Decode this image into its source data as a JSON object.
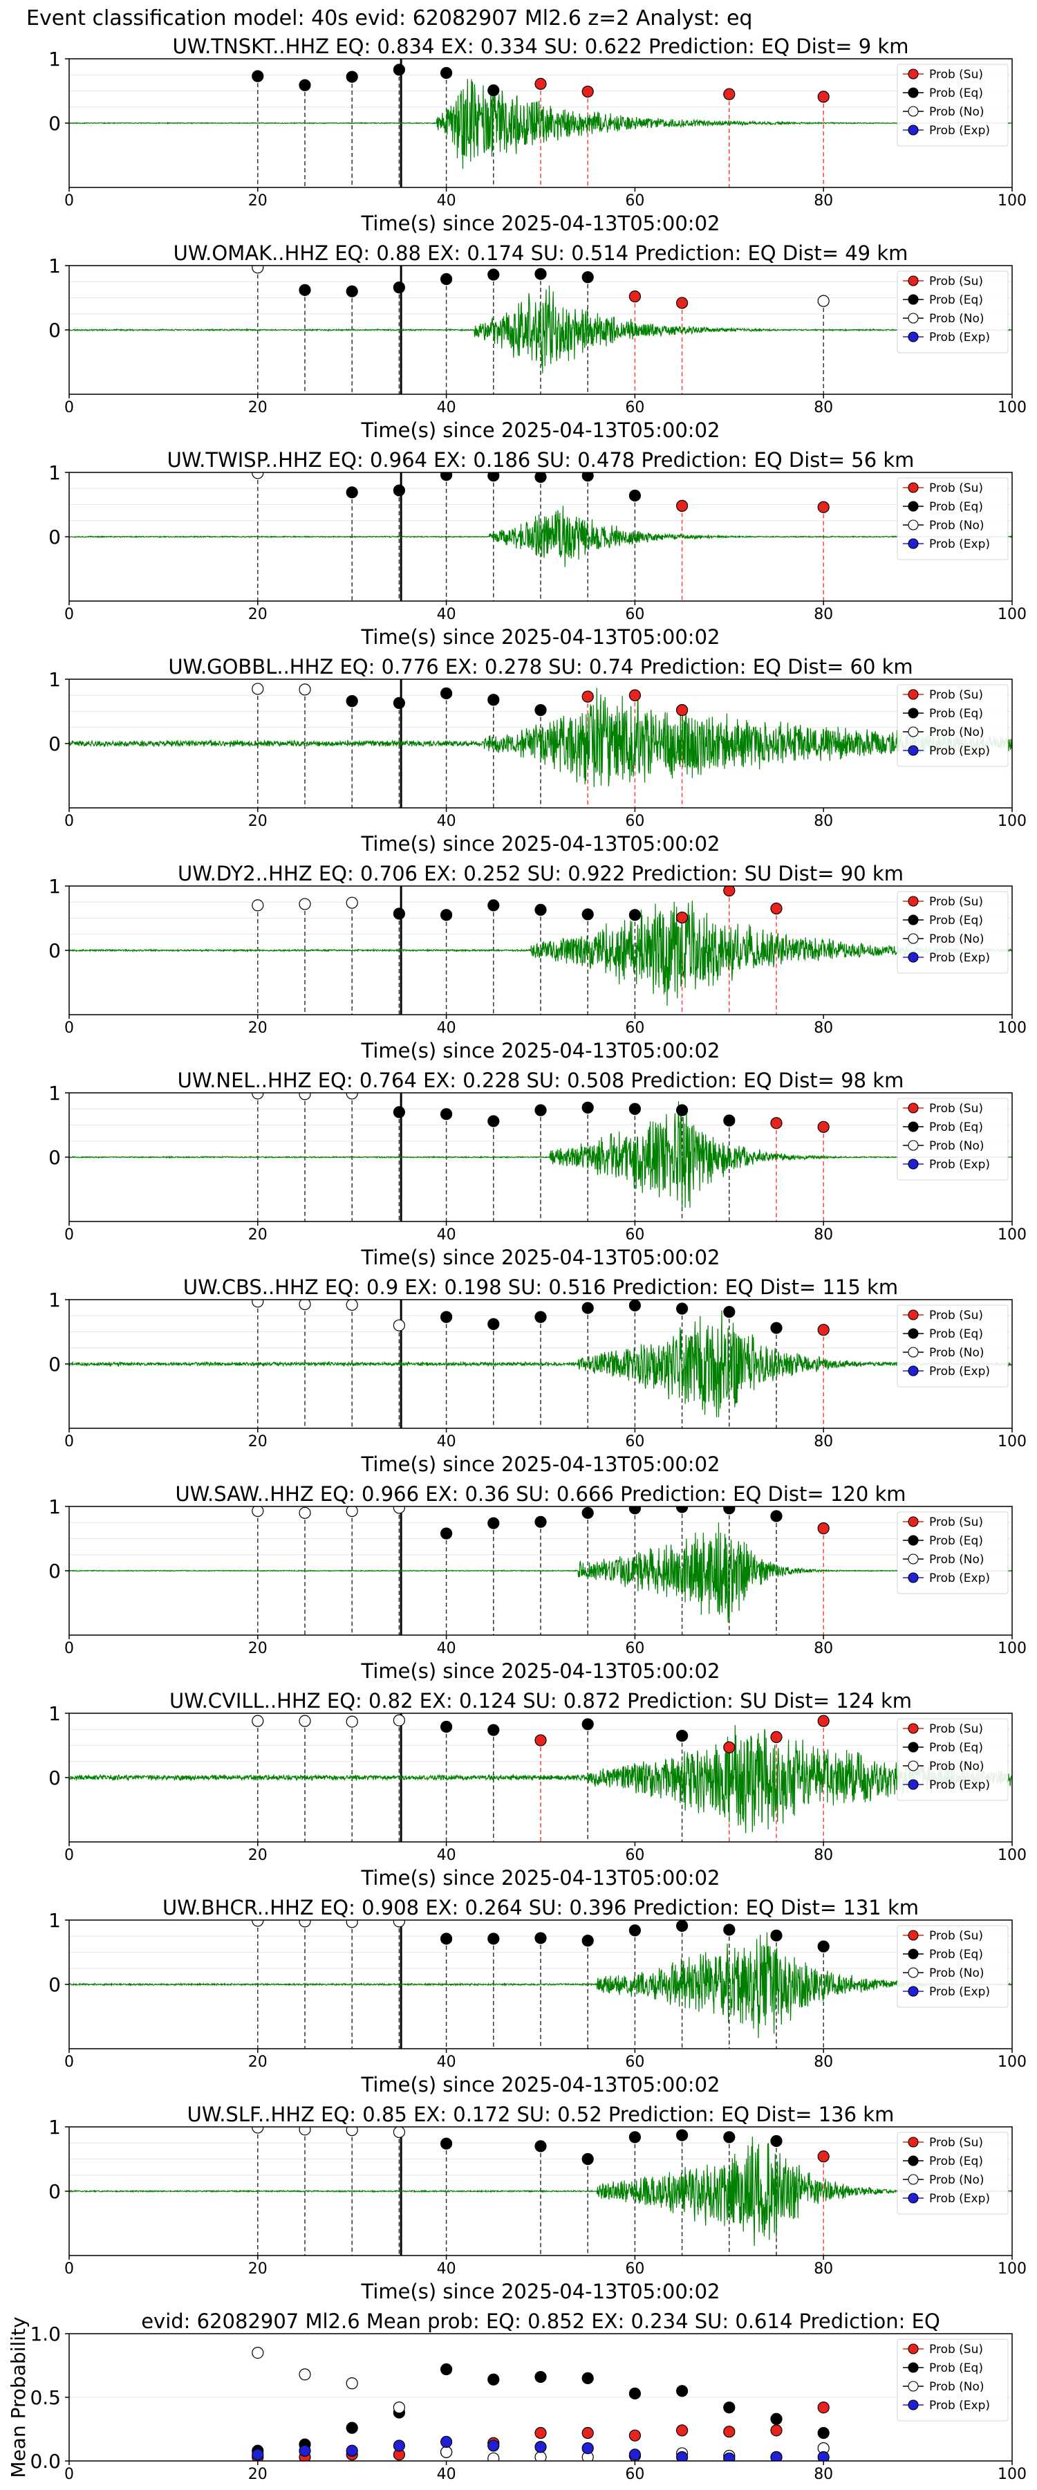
{
  "figure_title": "Event classification model: 40s evid: 62082907 Ml2.6 z=2 Analyst: eq",
  "xlabel": "Time(s) since 2025-04-13T05:00:02",
  "x_ticks": [
    0,
    20,
    40,
    60,
    80,
    100
  ],
  "legend": [
    "Prob (Su)",
    "Prob (Eq)",
    "Prob (No)",
    "Prob (Exp)"
  ],
  "colors": {
    "su": "#e8221c",
    "eq": "#000000",
    "no": "#ffffff",
    "exp": "#1f1fd6",
    "trace": "#008000"
  },
  "chart_data": [
    {
      "type": "scatter",
      "title": "UW.TNSKT..HHZ   EQ: 0.834  EX: 0.334  SU: 0.622   Prediction: EQ    Dist= 9 km",
      "xlim": [
        0,
        100
      ],
      "ylim": [
        -1,
        1
      ],
      "y_ticks": [
        1,
        0
      ],
      "arrival": 35.2,
      "trace": {
        "onset": 39,
        "peak": 42,
        "decay": 9,
        "amp": 0.9,
        "bg": 0.008,
        "seed": 11
      },
      "series": [
        {
          "name": "Prob (Eq)",
          "x": [
            20,
            25,
            30,
            35,
            40,
            45
          ],
          "y": [
            0.73,
            0.59,
            0.72,
            0.83,
            0.78,
            0.51
          ]
        },
        {
          "name": "Prob (Su)",
          "x": [
            50,
            55,
            70,
            80
          ],
          "y": [
            0.61,
            0.49,
            0.45,
            0.41
          ]
        }
      ]
    },
    {
      "type": "scatter",
      "title": "UW.OMAK..HHZ   EQ: 0.88  EX: 0.174  SU: 0.514   Prediction: EQ    Dist= 49 km",
      "xlim": [
        0,
        100
      ],
      "ylim": [
        -1,
        1
      ],
      "y_ticks": [
        1,
        0
      ],
      "arrival": 35.2,
      "trace": {
        "onset": 43,
        "peak": 50,
        "decay": 6,
        "amp": 0.9,
        "bg": 0.012,
        "seed": 23
      },
      "series": [
        {
          "name": "Prob (No)",
          "x": [
            20,
            80
          ],
          "y": [
            0.97,
            0.45
          ]
        },
        {
          "name": "Prob (Eq)",
          "x": [
            25,
            30,
            35,
            40,
            45,
            50,
            55
          ],
          "y": [
            0.62,
            0.6,
            0.66,
            0.79,
            0.86,
            0.87,
            0.82
          ]
        },
        {
          "name": "Prob (Su)",
          "x": [
            60,
            65
          ],
          "y": [
            0.52,
            0.42
          ]
        }
      ]
    },
    {
      "type": "scatter",
      "title": "UW.TWISP..HHZ   EQ: 0.964  EX: 0.186  SU: 0.478   Prediction: EQ    Dist= 56 km",
      "xlim": [
        0,
        100
      ],
      "ylim": [
        -1,
        1
      ],
      "y_ticks": [
        1,
        0
      ],
      "arrival": 35.2,
      "trace": {
        "onset": 44.5,
        "peak": 52,
        "decay": 5,
        "amp": 0.6,
        "bg": 0.01,
        "seed": 37
      },
      "series": [
        {
          "name": "Prob (No)",
          "x": [
            20
          ],
          "y": [
            0.99
          ]
        },
        {
          "name": "Prob (Eq)",
          "x": [
            30,
            35,
            40,
            45,
            50,
            55,
            60
          ],
          "y": [
            0.69,
            0.72,
            0.96,
            0.95,
            0.93,
            0.95,
            0.64
          ]
        },
        {
          "name": "Prob (Su)",
          "x": [
            65,
            80
          ],
          "y": [
            0.48,
            0.46
          ]
        }
      ]
    },
    {
      "type": "scatter",
      "title": "UW.GOBBL..HHZ   EQ: 0.776  EX: 0.278  SU: 0.74   Prediction: EQ    Dist= 60 km",
      "xlim": [
        0,
        100
      ],
      "ylim": [
        -1,
        1
      ],
      "y_ticks": [
        1,
        0
      ],
      "arrival": 35.2,
      "trace": {
        "onset": 44,
        "peak": 56,
        "decay": 22,
        "amp": 0.9,
        "bg": 0.05,
        "seed": 41
      },
      "series": [
        {
          "name": "Prob (No)",
          "x": [
            20,
            25
          ],
          "y": [
            0.85,
            0.84
          ]
        },
        {
          "name": "Prob (Eq)",
          "x": [
            30,
            35,
            40,
            45,
            50
          ],
          "y": [
            0.66,
            0.63,
            0.78,
            0.68,
            0.52
          ]
        },
        {
          "name": "Prob (Su)",
          "x": [
            55,
            60,
            65
          ],
          "y": [
            0.73,
            0.75,
            0.52
          ]
        }
      ]
    },
    {
      "type": "scatter",
      "title": "UW.DY2..HHZ   EQ: 0.706  EX: 0.252  SU: 0.922   Prediction: SU    Dist= 90 km",
      "xlim": [
        0,
        100
      ],
      "ylim": [
        -1,
        1
      ],
      "y_ticks": [
        1,
        0
      ],
      "arrival": 35.2,
      "trace": {
        "onset": 49,
        "peak": 64,
        "decay": 10,
        "amp": 1.0,
        "bg": 0.015,
        "seed": 53
      },
      "series": [
        {
          "name": "Prob (No)",
          "x": [
            20,
            25,
            30
          ],
          "y": [
            0.7,
            0.72,
            0.74
          ]
        },
        {
          "name": "Prob (Eq)",
          "x": [
            35,
            40,
            45,
            50,
            55,
            60
          ],
          "y": [
            0.57,
            0.55,
            0.7,
            0.63,
            0.56,
            0.55
          ]
        },
        {
          "name": "Prob (Su)",
          "x": [
            65,
            70,
            75
          ],
          "y": [
            0.51,
            0.93,
            0.65
          ]
        }
      ]
    },
    {
      "type": "scatter",
      "title": "UW.NEL..HHZ   EQ: 0.764  EX: 0.228  SU: 0.508   Prediction: EQ    Dist= 98 km",
      "xlim": [
        0,
        100
      ],
      "ylim": [
        -1,
        1
      ],
      "y_ticks": [
        1,
        0
      ],
      "arrival": 35.2,
      "trace": {
        "onset": 51,
        "peak": 65,
        "decay": 4,
        "amp": 1.0,
        "bg": 0.01,
        "seed": 67
      },
      "series": [
        {
          "name": "Prob (No)",
          "x": [
            20,
            25,
            30
          ],
          "y": [
            0.99,
            0.98,
            0.99
          ]
        },
        {
          "name": "Prob (Eq)",
          "x": [
            35,
            40,
            45,
            50,
            55,
            60,
            65,
            70
          ],
          "y": [
            0.7,
            0.67,
            0.56,
            0.73,
            0.77,
            0.75,
            0.73,
            0.57
          ]
        },
        {
          "name": "Prob (Su)",
          "x": [
            75,
            80
          ],
          "y": [
            0.53,
            0.47
          ]
        }
      ]
    },
    {
      "type": "scatter",
      "title": "UW.CBS..HHZ   EQ: 0.9  EX: 0.198  SU: 0.516   Prediction: EQ    Dist= 115 km",
      "xlim": [
        0,
        100
      ],
      "ylim": [
        -1,
        1
      ],
      "y_ticks": [
        1,
        0
      ],
      "arrival": 35.2,
      "trace": {
        "onset": 54,
        "peak": 69,
        "decay": 5,
        "amp": 1.0,
        "bg": 0.03,
        "seed": 79
      },
      "series": [
        {
          "name": "Prob (No)",
          "x": [
            20,
            25,
            30,
            35
          ],
          "y": [
            0.97,
            0.93,
            0.92,
            0.6
          ]
        },
        {
          "name": "Prob (Eq)",
          "x": [
            40,
            45,
            50,
            55,
            60,
            65,
            70,
            75
          ],
          "y": [
            0.73,
            0.62,
            0.73,
            0.87,
            0.91,
            0.86,
            0.81,
            0.56
          ]
        },
        {
          "name": "Prob (Su)",
          "x": [
            80
          ],
          "y": [
            0.53
          ]
        }
      ]
    },
    {
      "type": "scatter",
      "title": "UW.SAW..HHZ   EQ: 0.966  EX: 0.36  SU: 0.666   Prediction: EQ    Dist= 120 km",
      "xlim": [
        0,
        100
      ],
      "ylim": [
        -1,
        1
      ],
      "y_ticks": [
        1,
        0
      ],
      "arrival": 35.2,
      "trace": {
        "onset": 54,
        "peak": 70,
        "decay": 2.5,
        "amp": 1.0,
        "bg": 0.008,
        "seed": 83
      },
      "series": [
        {
          "name": "Prob (No)",
          "x": [
            20,
            25,
            30,
            35
          ],
          "y": [
            0.93,
            0.9,
            0.93,
            0.98
          ]
        },
        {
          "name": "Prob (Eq)",
          "x": [
            40,
            45,
            50,
            55,
            60,
            65,
            70,
            75
          ],
          "y": [
            0.58,
            0.74,
            0.76,
            0.9,
            0.97,
            0.99,
            0.97,
            0.85
          ]
        },
        {
          "name": "Prob (Su)",
          "x": [
            80
          ],
          "y": [
            0.66
          ]
        }
      ]
    },
    {
      "type": "scatter",
      "title": "UW.CVILL..HHZ   EQ: 0.82  EX: 0.124  SU: 0.872   Prediction: SU    Dist= 124 km",
      "xlim": [
        0,
        100
      ],
      "ylim": [
        -1,
        1
      ],
      "y_ticks": [
        1,
        0
      ],
      "arrival": 35.2,
      "trace": {
        "onset": 55,
        "peak": 72,
        "decay": 14,
        "amp": 1.0,
        "bg": 0.045,
        "seed": 97
      },
      "series": [
        {
          "name": "Prob (No)",
          "x": [
            20,
            25,
            30,
            35
          ],
          "y": [
            0.88,
            0.88,
            0.87,
            0.89
          ]
        },
        {
          "name": "Prob (Eq)",
          "x": [
            40,
            45,
            55,
            65
          ],
          "y": [
            0.79,
            0.74,
            0.83,
            0.65
          ]
        },
        {
          "name": "Prob (Su)",
          "x": [
            50,
            70,
            75,
            80
          ],
          "y": [
            0.58,
            0.47,
            0.63,
            0.88
          ]
        }
      ]
    },
    {
      "type": "scatter",
      "title": "UW.BHCR..HHZ   EQ: 0.908  EX: 0.264  SU: 0.396   Prediction: EQ    Dist= 131 km",
      "xlim": [
        0,
        100
      ],
      "ylim": [
        -1,
        1
      ],
      "y_ticks": [
        1,
        0
      ],
      "arrival": 35.2,
      "trace": {
        "onset": 56,
        "peak": 74,
        "decay": 5,
        "amp": 1.0,
        "bg": 0.015,
        "seed": 101
      },
      "series": [
        {
          "name": "Prob (No)",
          "x": [
            20,
            25,
            30,
            35
          ],
          "y": [
            0.99,
            0.98,
            0.97,
            0.98
          ]
        },
        {
          "name": "Prob (Eq)",
          "x": [
            40,
            45,
            50,
            55,
            60,
            65,
            70,
            75,
            80
          ],
          "y": [
            0.71,
            0.71,
            0.72,
            0.68,
            0.84,
            0.91,
            0.85,
            0.76,
            0.59
          ]
        }
      ]
    },
    {
      "type": "scatter",
      "title": "UW.SLF..HHZ   EQ: 0.85  EX: 0.172  SU: 0.52   Prediction: EQ    Dist= 136 km",
      "xlim": [
        0,
        100
      ],
      "ylim": [
        -1,
        1
      ],
      "y_ticks": [
        1,
        0
      ],
      "arrival": 35.2,
      "trace": {
        "onset": 56,
        "peak": 74,
        "decay": 4,
        "amp": 1.0,
        "bg": 0.012,
        "seed": 113
      },
      "series": [
        {
          "name": "Prob (No)",
          "x": [
            20,
            25,
            30,
            35
          ],
          "y": [
            0.99,
            0.96,
            0.95,
            0.92
          ]
        },
        {
          "name": "Prob (Eq)",
          "x": [
            40,
            50,
            55,
            60,
            65,
            70,
            75
          ],
          "y": [
            0.74,
            0.7,
            0.5,
            0.84,
            0.87,
            0.84,
            0.78
          ]
        },
        {
          "name": "Prob (Su)",
          "x": [
            80
          ],
          "y": [
            0.54
          ]
        }
      ]
    },
    {
      "type": "scatter",
      "title": "evid: 62082907  Ml2.6   Mean prob:    EQ: 0.852  EX: 0.234  SU: 0.614   Prediction: EQ",
      "ylabel": "Mean Probability",
      "xlim": [
        0,
        100
      ],
      "ylim": [
        0,
        1
      ],
      "y_ticks": [
        1.0,
        0.5,
        0.0
      ],
      "series": [
        {
          "name": "Prob (Su)",
          "x": [
            20,
            25,
            30,
            35,
            40,
            45,
            50,
            55,
            60,
            65,
            70,
            75,
            80
          ],
          "y": [
            0.03,
            0.03,
            0.05,
            0.05,
            0.07,
            0.14,
            0.22,
            0.22,
            0.2,
            0.24,
            0.23,
            0.24,
            0.42
          ]
        },
        {
          "name": "Prob (Eq)",
          "x": [
            20,
            25,
            30,
            35,
            40,
            45,
            50,
            55,
            60,
            65,
            70,
            75,
            80
          ],
          "y": [
            0.08,
            0.13,
            0.26,
            0.38,
            0.72,
            0.64,
            0.66,
            0.65,
            0.53,
            0.55,
            0.42,
            0.33,
            0.22
          ]
        },
        {
          "name": "Prob (No)",
          "x": [
            20,
            25,
            30,
            35,
            40,
            45,
            50,
            55,
            60,
            65,
            70,
            75,
            80
          ],
          "y": [
            0.85,
            0.68,
            0.61,
            0.42,
            0.07,
            0.02,
            0.03,
            0.03,
            0.04,
            0.06,
            0.04,
            0.03,
            0.1
          ]
        },
        {
          "name": "Prob (Exp)",
          "x": [
            20,
            25,
            30,
            35,
            40,
            45,
            50,
            55,
            60,
            65,
            70,
            75,
            80
          ],
          "y": [
            0.05,
            0.08,
            0.08,
            0.12,
            0.15,
            0.12,
            0.11,
            0.1,
            0.05,
            0.03,
            0.02,
            0.03,
            0.03
          ]
        }
      ]
    }
  ]
}
